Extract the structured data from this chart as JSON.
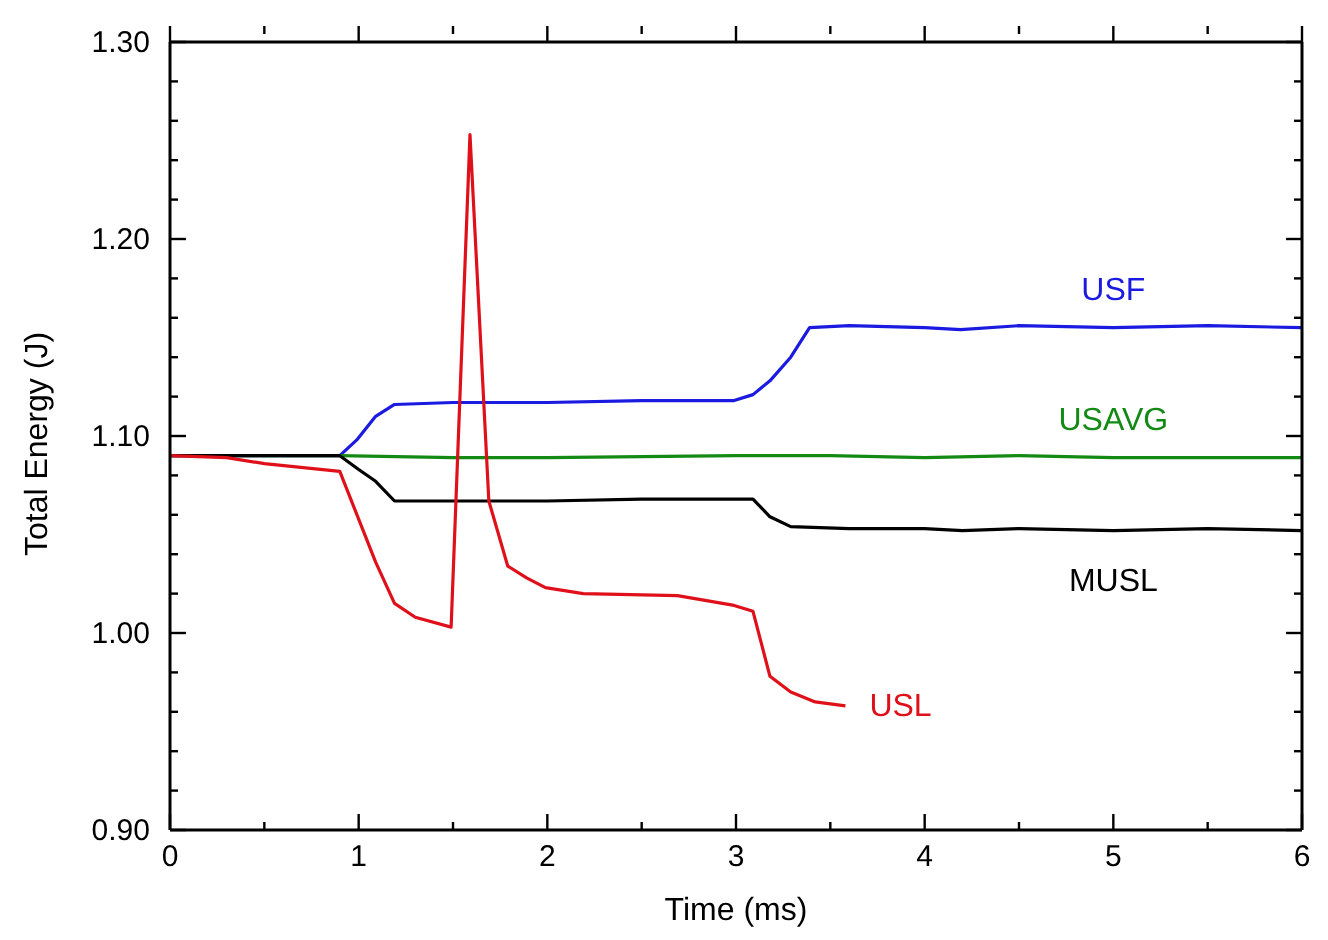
{
  "chart_data": {
    "type": "line",
    "xlabel": "Time (ms)",
    "ylabel": "Total Energy (J)",
    "xlim": [
      0,
      6
    ],
    "ylim": [
      0.9,
      1.3
    ],
    "xticks": [
      0,
      {
        "value": 0.5,
        "label": null
      },
      1,
      {
        "value": 1.5,
        "label": null
      },
      2,
      {
        "value": 2.5,
        "label": null
      },
      3,
      {
        "value": 3.5,
        "label": null
      },
      4,
      {
        "value": 4.5,
        "label": null
      },
      5,
      {
        "value": 5.5,
        "label": null
      },
      6
    ],
    "yticks": [
      {
        "value": 0.9,
        "label": "0.90"
      },
      {
        "value": 0.92,
        "label": null
      },
      {
        "value": 0.94,
        "label": null
      },
      {
        "value": 0.96,
        "label": null
      },
      {
        "value": 0.98,
        "label": null
      },
      {
        "value": 1.0,
        "label": "1.00"
      },
      {
        "value": 1.02,
        "label": null
      },
      {
        "value": 1.04,
        "label": null
      },
      {
        "value": 1.06,
        "label": null
      },
      {
        "value": 1.08,
        "label": null
      },
      {
        "value": 1.1,
        "label": "1.10"
      },
      {
        "value": 1.12,
        "label": null
      },
      {
        "value": 1.14,
        "label": null
      },
      {
        "value": 1.16,
        "label": null
      },
      {
        "value": 1.18,
        "label": null
      },
      {
        "value": 1.2,
        "label": "1.20"
      },
      {
        "value": 1.22,
        "label": null
      },
      {
        "value": 1.24,
        "label": null
      },
      {
        "value": 1.26,
        "label": null
      },
      {
        "value": 1.28,
        "label": null
      },
      {
        "value": 1.3,
        "label": "1.30"
      }
    ],
    "marker": "none",
    "line_style": "solid",
    "series": [
      {
        "name": "USF",
        "color": "#1a1ae0",
        "x": [
          0,
          0.9,
          0.99,
          1.09,
          1.19,
          1.5,
          2.0,
          2.5,
          2.99,
          3.09,
          3.18,
          3.29,
          3.39,
          3.6,
          4.0,
          4.19,
          4.5,
          5.0,
          5.5,
          6.0
        ],
        "values": [
          1.09,
          1.09,
          1.098,
          1.11,
          1.116,
          1.117,
          1.117,
          1.118,
          1.118,
          1.121,
          1.128,
          1.14,
          1.155,
          1.156,
          1.155,
          1.154,
          1.156,
          1.155,
          1.156,
          1.155
        ]
      },
      {
        "name": "USAVG",
        "color": "#138a13",
        "x": [
          0,
          0.9,
          1.5,
          2.0,
          3.0,
          3.5,
          4.0,
          4.5,
          5.0,
          5.5,
          6.0
        ],
        "values": [
          1.09,
          1.09,
          1.089,
          1.089,
          1.09,
          1.09,
          1.089,
          1.09,
          1.089,
          1.089,
          1.089
        ]
      },
      {
        "name": "MUSL",
        "color": "#000000",
        "x": [
          0,
          0.9,
          1.0,
          1.09,
          1.19,
          1.5,
          2.0,
          2.5,
          3.09,
          3.18,
          3.29,
          3.6,
          4.0,
          4.2,
          4.5,
          5.0,
          5.5,
          6.0
        ],
        "values": [
          1.09,
          1.09,
          1.083,
          1.077,
          1.067,
          1.067,
          1.067,
          1.068,
          1.068,
          1.059,
          1.054,
          1.053,
          1.053,
          1.052,
          1.053,
          1.052,
          1.053,
          1.052
        ]
      },
      {
        "name": "USL",
        "color": "#e0101a",
        "x": [
          0,
          0.3,
          0.5,
          0.9,
          1.09,
          1.19,
          1.3,
          1.49,
          1.59,
          1.69,
          1.79,
          1.89,
          1.99,
          2.19,
          2.69,
          2.99,
          3.09,
          3.18,
          3.29,
          3.42,
          3.58
        ],
        "values": [
          1.09,
          1.089,
          1.086,
          1.082,
          1.036,
          1.015,
          1.008,
          1.003,
          1.253,
          1.067,
          1.034,
          1.028,
          1.023,
          1.02,
          1.019,
          1.014,
          1.011,
          0.978,
          0.97,
          0.965,
          0.963
        ]
      }
    ]
  }
}
